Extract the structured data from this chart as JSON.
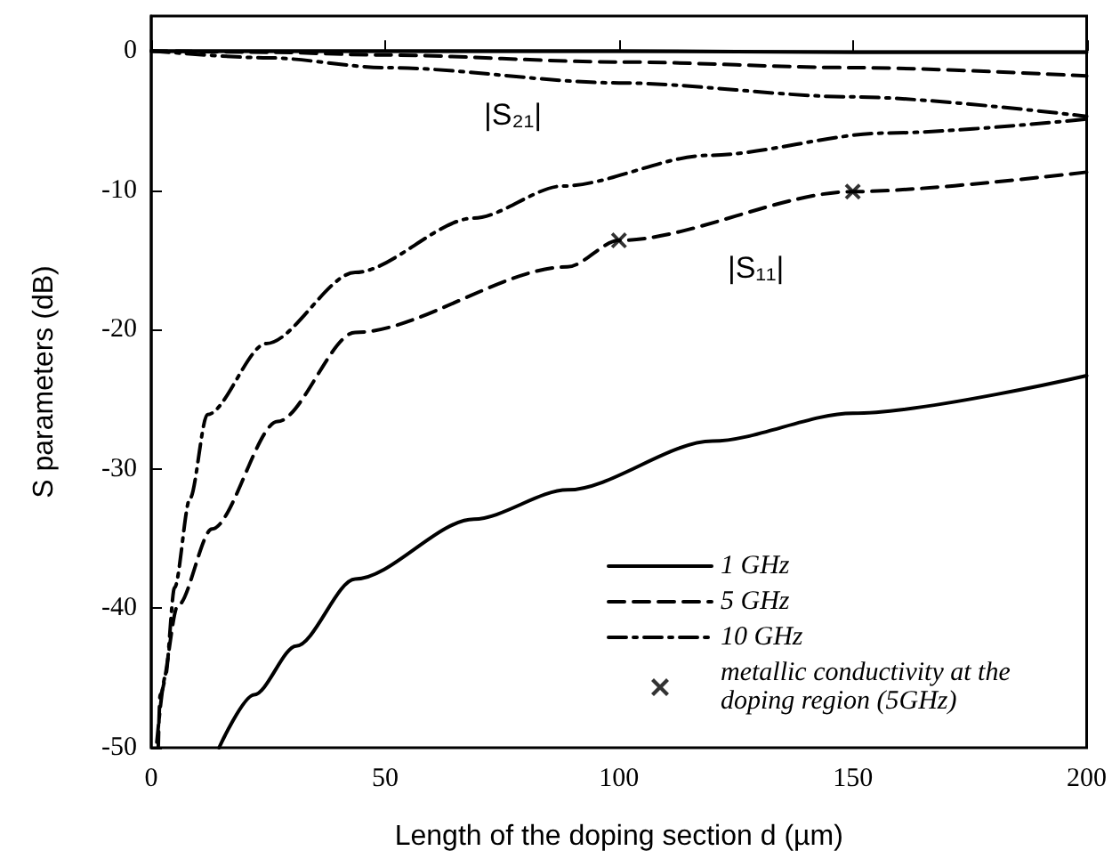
{
  "chart_data": {
    "type": "line",
    "xlabel": "Length of the doping section d (µm)",
    "ylabel": "S parameters (dB)",
    "xlim": [
      0,
      200
    ],
    "xticks": [
      0,
      50,
      100,
      150,
      200
    ],
    "ylim": [
      -50,
      2.5
    ],
    "yticks": [
      0,
      -10,
      -20,
      -30,
      -40,
      -50
    ],
    "legend": "bottom right",
    "marker": "none",
    "annotations": [
      "|S₂₁|",
      "|S₁₁|"
    ],
    "series": [
      {
        "name": "1 GHz",
        "color": "#000000",
        "line_style": "solid",
        "x": [
          0,
          50,
          100,
          150,
          200
        ],
        "values": [
          0,
          0,
          0,
          -0.1,
          -0.1
        ]
      },
      {
        "name": "5 GHz",
        "color": "#000000",
        "line_style": "dashed",
        "x": [
          0,
          25,
          50,
          100,
          150,
          200
        ],
        "values": [
          0,
          -0.1,
          -0.3,
          -0.8,
          -1.2,
          -1.8
        ]
      },
      {
        "name": "10 GHz",
        "color": "#000000",
        "line_style": "dashdot",
        "x": [
          0,
          25,
          50,
          100,
          150,
          200
        ],
        "values": [
          0,
          -0.5,
          -1.2,
          -2.3,
          -3.3,
          -4.7
        ]
      },
      {
        "color": "#000000",
        "line_style": "solid",
        "x": [
          14.5,
          22,
          31,
          43.6,
          69,
          89,
          120,
          150,
          200
        ],
        "values": [
          -50,
          -46.2,
          -42.7,
          -37.9,
          -33.6,
          -31.5,
          -28,
          -26,
          -23.3
        ]
      },
      {
        "color": "#000000",
        "line_style": "dashed",
        "x": [
          1.5,
          1.9,
          5.7,
          13,
          27,
          43.6,
          89,
          100,
          150,
          200
        ],
        "values": [
          -50,
          -46.2,
          -39.8,
          -34.3,
          -26.6,
          -20.2,
          -15.5,
          -13.6,
          -10.1,
          -8.7
        ]
      },
      {
        "color": "#000000",
        "line_style": "dashdot",
        "x": [
          1.2,
          3,
          5,
          8.3,
          12,
          24.6,
          43.6,
          69,
          88,
          119,
          157,
          200
        ],
        "values": [
          -49.6,
          -44.9,
          -38.5,
          -32.1,
          -26.1,
          -21,
          -15.9,
          -12,
          -9.7,
          -7.5,
          -5.9,
          -4.9
        ]
      },
      {
        "type": "scatter",
        "name": "metallic conductivity at the doping region (5GHz)",
        "color": "#000000",
        "marker": "cross",
        "x": [
          100,
          150
        ],
        "values": [
          -13.6,
          -10.1
        ]
      }
    ]
  }
}
